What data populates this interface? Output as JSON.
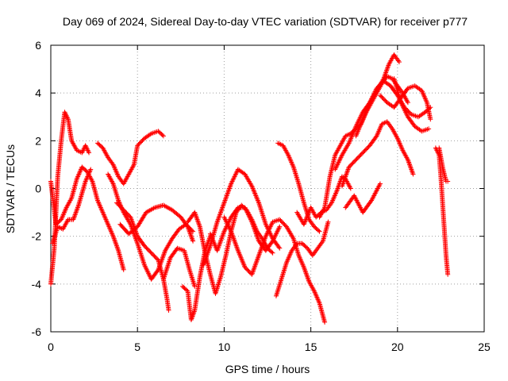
{
  "chart_data": {
    "type": "scatter",
    "title": "Day 069 of 2024, Sidereal Day-to-day VTEC variation (SDTVAR) for receiver p777",
    "xlabel": "GPS time / hours",
    "ylabel": "SDTVAR / TECUs",
    "xlim": [
      0,
      25
    ],
    "ylim": [
      -6,
      6
    ],
    "xticks": [
      "0",
      "5",
      "10",
      "15",
      "20",
      "25"
    ],
    "yticks": [
      "-6",
      "-4",
      "-2",
      "0",
      "2",
      "4",
      "6"
    ],
    "grid": true,
    "marker": "+",
    "color": "#ff0000",
    "series": [
      {
        "x": [
          0.0,
          0.2,
          0.4,
          0.6,
          0.8,
          1.0,
          1.2,
          1.5,
          1.8,
          2.0,
          2.2
        ],
        "y": [
          -4.0,
          -2.5,
          0.5,
          2.0,
          3.2,
          2.9,
          2.0,
          1.6,
          1.5,
          1.8,
          1.5
        ]
      },
      {
        "x": [
          0.0,
          0.3,
          0.6,
          0.9,
          1.2,
          1.5,
          1.8,
          2.1,
          2.4,
          2.7,
          3.0,
          3.3,
          3.6,
          3.9,
          4.2
        ],
        "y": [
          0.3,
          -1.5,
          -1.3,
          -0.8,
          -0.4,
          0.4,
          0.9,
          0.7,
          0.3,
          -0.5,
          -1.0,
          -1.5,
          -2.0,
          -2.6,
          -3.4
        ]
      },
      {
        "x": [
          0.1,
          0.4,
          0.7,
          1.0,
          1.3,
          1.6,
          2.0,
          2.3
        ],
        "y": [
          -2.3,
          -1.6,
          -1.7,
          -1.3,
          -1.3,
          -0.7,
          0.3,
          0.8
        ]
      },
      {
        "x": [
          2.7,
          3.0,
          3.3,
          3.6,
          3.9,
          4.2,
          4.5,
          4.8,
          5.0,
          5.4,
          5.8,
          6.2,
          6.5
        ],
        "y": [
          1.9,
          1.7,
          1.3,
          1.0,
          0.5,
          0.2,
          0.6,
          1.0,
          1.8,
          2.1,
          2.3,
          2.4,
          2.2
        ]
      },
      {
        "x": [
          3.3,
          3.6,
          3.9,
          4.2,
          4.6,
          5.0,
          5.4,
          5.8,
          6.2,
          6.6,
          7.0,
          7.4,
          7.8,
          8.2
        ],
        "y": [
          0.6,
          0.2,
          -0.5,
          -1.0,
          -1.5,
          -2.3,
          -3.2,
          -3.8,
          -3.4,
          -2.6,
          -2.1,
          -1.7,
          -1.5,
          -1.8
        ]
      },
      {
        "x": [
          4.0,
          4.5,
          5.0,
          5.5,
          6.0,
          6.5,
          7.0,
          7.5,
          7.9,
          8.2
        ],
        "y": [
          -1.5,
          -1.9,
          -1.6,
          -1.0,
          -0.8,
          -0.7,
          -0.9,
          -1.2,
          -1.6,
          -2.2
        ]
      },
      {
        "x": [
          3.8,
          4.2,
          4.6,
          5.0,
          5.4,
          5.8,
          6.2,
          6.5,
          6.7,
          6.8
        ],
        "y": [
          -0.6,
          -0.9,
          -1.2,
          -2.0,
          -2.4,
          -2.7,
          -3.0,
          -3.8,
          -4.6,
          -5.1
        ]
      },
      {
        "x": [
          6.5,
          6.9,
          7.3,
          7.7,
          8.0,
          8.3
        ],
        "y": [
          -3.8,
          -2.9,
          -2.5,
          -2.6,
          -3.4,
          -4.1
        ]
      },
      {
        "x": [
          7.6,
          7.9,
          8.1,
          8.3,
          8.6,
          8.9,
          9.2
        ],
        "y": [
          -4.1,
          -4.3,
          -5.5,
          -5.1,
          -3.7,
          -2.6,
          -2.0
        ]
      },
      {
        "x": [
          7.9,
          8.3,
          8.6,
          8.9,
          9.2,
          9.5,
          9.8,
          10.1,
          10.4,
          10.7,
          11.0,
          11.3,
          11.6,
          11.9,
          12.2,
          12.5,
          12.8
        ],
        "y": [
          -1.4,
          -1.0,
          -1.6,
          -2.7,
          -3.6,
          -4.4,
          -3.7,
          -2.8,
          -1.8,
          -1.0,
          -0.7,
          -0.9,
          -1.3,
          -1.8,
          -2.1,
          -2.5,
          -2.7
        ]
      },
      {
        "x": [
          8.8,
          9.2,
          9.6,
          10.0,
          10.4,
          10.8,
          11.2,
          11.6,
          12.0,
          12.4,
          12.8,
          13.2
        ],
        "y": [
          -3.2,
          -2.4,
          -1.4,
          -0.6,
          0.2,
          0.8,
          0.6,
          0.1,
          -0.6,
          -1.5,
          -2.1,
          -2.5
        ]
      },
      {
        "x": [
          9.2,
          9.6,
          10.0,
          10.4,
          10.8,
          11.2,
          11.6,
          12.0,
          12.4,
          12.8,
          13.2
        ],
        "y": [
          -1.9,
          -2.6,
          -1.8,
          -1.2,
          -0.8,
          -0.8,
          -1.4,
          -2.2,
          -2.6,
          -2.2,
          -1.6
        ]
      },
      {
        "x": [
          10.0,
          10.4,
          10.8,
          11.2,
          11.6,
          12.0,
          12.4,
          12.8,
          13.2,
          13.6,
          14.0,
          14.3,
          14.6,
          14.9,
          15.2,
          15.5,
          15.8
        ],
        "y": [
          -1.2,
          -1.8,
          -2.6,
          -3.3,
          -3.6,
          -2.8,
          -2.0,
          -1.4,
          -1.3,
          -1.6,
          -2.1,
          -2.8,
          -3.3,
          -3.9,
          -4.3,
          -4.8,
          -5.6
        ]
      },
      {
        "x": [
          13.1,
          13.4,
          13.7,
          14.0,
          14.3,
          14.6,
          14.9,
          15.2,
          15.5
        ],
        "y": [
          1.9,
          1.8,
          1.4,
          0.9,
          0.2,
          -0.6,
          -1.3,
          -1.6,
          -1.8
        ]
      },
      {
        "x": [
          13.0,
          13.3,
          13.6,
          13.9,
          14.2,
          14.5,
          14.8,
          15.1,
          15.4,
          15.7,
          16.0
        ],
        "y": [
          -4.5,
          -3.8,
          -3.1,
          -2.6,
          -2.3,
          -2.3,
          -2.5,
          -2.8,
          -2.5,
          -2.2,
          -1.4
        ]
      },
      {
        "x": [
          14.2,
          14.6,
          15.0,
          15.3,
          15.6,
          15.9,
          16.2,
          16.5,
          16.8,
          17.0,
          17.3
        ],
        "y": [
          -1.0,
          -1.5,
          -0.8,
          -1.2,
          -1.0,
          -0.9,
          -0.6,
          -0.1,
          0.5,
          0.4,
          0.0
        ]
      },
      {
        "x": [
          15.5,
          15.8,
          16.1,
          16.4,
          16.7,
          17.0,
          17.3,
          17.6,
          17.9,
          18.2,
          18.5,
          18.8,
          19.1,
          19.4,
          19.7,
          20.0,
          20.3,
          20.6
        ],
        "y": [
          -1.2,
          -0.8,
          0.5,
          1.4,
          1.8,
          2.2,
          2.3,
          2.5,
          2.7,
          3.2,
          3.6,
          4.0,
          4.4,
          4.7,
          4.6,
          4.3,
          4.0,
          3.6
        ]
      },
      {
        "x": [
          16.4,
          16.8,
          17.2,
          17.6,
          18.0,
          18.4,
          18.8,
          19.2,
          19.5,
          19.8,
          20.1
        ],
        "y": [
          0.8,
          1.4,
          1.9,
          2.6,
          3.2,
          3.6,
          4.1,
          4.6,
          5.2,
          5.6,
          5.3
        ]
      },
      {
        "x": [
          16.8,
          17.2,
          17.6,
          18.0,
          18.4,
          18.8,
          19.1,
          19.4,
          19.7,
          20.0,
          20.3,
          20.6,
          20.9
        ],
        "y": [
          0.1,
          0.9,
          1.2,
          1.5,
          1.8,
          2.2,
          2.7,
          2.8,
          2.5,
          2.1,
          1.6,
          1.2,
          0.6
        ]
      },
      {
        "x": [
          17.6,
          18.0,
          18.4,
          18.8,
          19.2,
          19.6,
          20.0,
          20.4,
          20.8,
          21.2,
          21.6,
          21.9
        ],
        "y": [
          2.2,
          2.9,
          3.6,
          4.2,
          4.5,
          4.3,
          3.9,
          3.4,
          3.1,
          3.0,
          3.2,
          3.4
        ]
      },
      {
        "x": [
          19.0,
          19.4,
          19.8,
          20.2,
          20.6,
          21.0,
          21.4,
          21.7,
          21.9
        ],
        "y": [
          3.9,
          3.6,
          3.4,
          3.8,
          4.2,
          4.3,
          4.1,
          3.6,
          2.9
        ]
      },
      {
        "x": [
          19.8,
          20.2,
          20.6,
          21.0,
          21.4,
          21.8
        ],
        "y": [
          4.6,
          3.6,
          3.0,
          2.6,
          2.4,
          2.5
        ]
      },
      {
        "x": [
          17.0,
          17.5,
          18.0,
          18.5,
          19.0
        ],
        "y": [
          -0.8,
          -0.3,
          -1.0,
          -0.5,
          0.2
        ]
      },
      {
        "x": [
          22.2,
          22.4,
          22.5,
          22.6,
          22.7,
          22.8,
          22.9
        ],
        "y": [
          1.7,
          1.4,
          0.5,
          -0.6,
          -1.7,
          -2.8,
          -3.6
        ]
      },
      {
        "x": [
          22.4,
          22.6,
          22.8,
          22.9
        ],
        "y": [
          1.7,
          0.9,
          0.3,
          0.3
        ]
      }
    ]
  }
}
